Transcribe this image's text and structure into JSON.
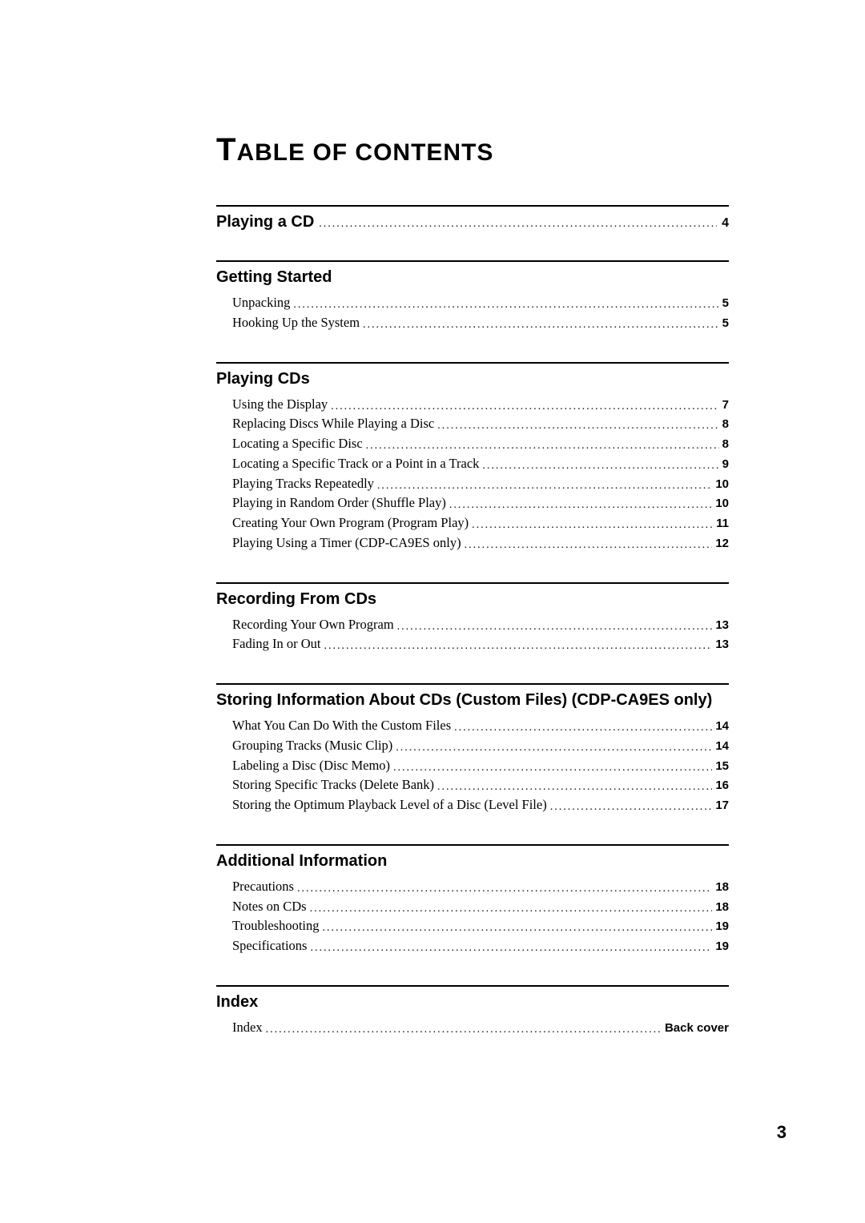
{
  "title_parts": [
    "T",
    "ABLE OF CONTENTS"
  ],
  "page_number": "3",
  "sections": [
    {
      "heading": "Playing a CD",
      "heading_page": "4",
      "entries": []
    },
    {
      "heading": "Getting Started",
      "entries": [
        {
          "label": "Unpacking",
          "page": "5"
        },
        {
          "label": "Hooking Up the System",
          "page": "5"
        }
      ]
    },
    {
      "heading": "Playing CDs",
      "entries": [
        {
          "label": "Using the Display",
          "page": "7"
        },
        {
          "label": "Replacing Discs While Playing a Disc",
          "page": "8"
        },
        {
          "label": "Locating a Specific Disc",
          "page": "8"
        },
        {
          "label": "Locating a Specific Track or a Point in a Track",
          "page": "9"
        },
        {
          "label": "Playing Tracks Repeatedly",
          "page": "10"
        },
        {
          "label": "Playing in Random Order (Shuffle Play)",
          "page": "10"
        },
        {
          "label": "Creating Your Own Program (Program Play)",
          "page": "11"
        },
        {
          "label": "Playing Using a Timer (CDP-CA9ES only)",
          "page": "12"
        }
      ]
    },
    {
      "heading": "Recording From CDs",
      "entries": [
        {
          "label": "Recording Your Own Program",
          "page": "13"
        },
        {
          "label": "Fading In or Out",
          "page": "13"
        }
      ]
    },
    {
      "heading": "Storing Information About CDs (Custom Files) (CDP-CA9ES only)",
      "entries": [
        {
          "label": "What You Can Do With the Custom Files",
          "page": "14"
        },
        {
          "label": "Grouping Tracks (Music Clip)",
          "page": "14"
        },
        {
          "label": "Labeling a Disc (Disc Memo)",
          "page": "15"
        },
        {
          "label": "Storing Specific Tracks (Delete Bank)",
          "page": "16"
        },
        {
          "label": "Storing the Optimum Playback Level of a Disc (Level File)",
          "page": "17"
        }
      ]
    },
    {
      "heading": "Additional Information",
      "entries": [
        {
          "label": "Precautions",
          "page": "18"
        },
        {
          "label": "Notes on CDs",
          "page": "18"
        },
        {
          "label": "Troubleshooting",
          "page": "19"
        },
        {
          "label": "Specifications",
          "page": "19"
        }
      ]
    },
    {
      "heading": "Index",
      "entries": [
        {
          "label": "Index",
          "page": "Back cover"
        }
      ]
    }
  ]
}
